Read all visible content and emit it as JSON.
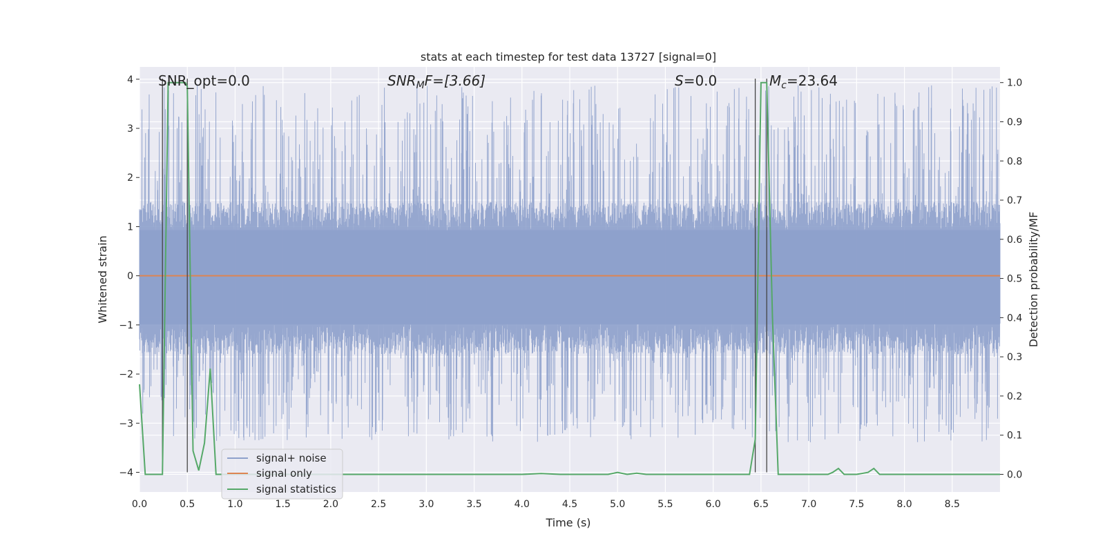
{
  "chart_data": {
    "type": "line",
    "title": "stats at each timestep for test data 13727 [signal=0]",
    "xlabel": "Time (s)",
    "ylabel": "Whitened strain",
    "y2label": "Detection probability/MF",
    "xlim": [
      0.0,
      9.0
    ],
    "ylim": [
      -4.4,
      4.25
    ],
    "y2lim": [
      -0.045,
      1.04
    ],
    "xticks": [
      "0.0",
      "0.5",
      "1.0",
      "1.5",
      "2.0",
      "2.5",
      "3.0",
      "3.5",
      "4.0",
      "4.5",
      "5.0",
      "5.5",
      "6.0",
      "6.5",
      "7.0",
      "7.5",
      "8.0",
      "8.5"
    ],
    "yticks": [
      "4",
      "3",
      "2",
      "1",
      "0",
      "−1",
      "−2",
      "−3",
      "−4"
    ],
    "y2ticks": [
      "1.0",
      "0.9",
      "0.8",
      "0.7",
      "0.6",
      "0.5",
      "0.4",
      "0.3",
      "0.2",
      "0.1",
      "0.0"
    ],
    "grid": true,
    "legend_position": "lower-left",
    "annotations": {
      "snr_opt": "SNR_opt=0.0",
      "snr_mf_name": "SNR",
      "snr_mf_sub": "M",
      "snr_mf_rest": "F=[3.66]",
      "s_name": "S",
      "s_rest": "=0.0",
      "mc_name": "M",
      "mc_sub": "c",
      "mc_rest": "=23.64"
    },
    "vlines_x": [
      0.24,
      0.5,
      6.44,
      6.56
    ],
    "series": [
      {
        "name": "signal+ noise",
        "color": "#8da0cb",
        "style": "noise",
        "envelope_upper": 1.5,
        "envelope_lower": -1.6,
        "peak_range": [
          -3.4,
          3.9
        ]
      },
      {
        "name": "signal only",
        "color": "#dd8452",
        "x": [
          0.0,
          9.0
        ],
        "y": [
          0.0,
          0.0
        ]
      },
      {
        "name": "signal statistics",
        "color": "#55a868",
        "axis": "right",
        "x": [
          0.0,
          0.06,
          0.12,
          0.18,
          0.24,
          0.3,
          0.36,
          0.42,
          0.48,
          0.5,
          0.56,
          0.62,
          0.68,
          0.74,
          0.8,
          0.86,
          0.92,
          1.0,
          2.0,
          3.0,
          4.0,
          4.2,
          4.4,
          4.9,
          5.0,
          5.1,
          5.2,
          5.3,
          5.5,
          6.0,
          6.38,
          6.44,
          6.5,
          6.56,
          6.62,
          6.68,
          6.74,
          6.8,
          7.0,
          7.2,
          7.25,
          7.31,
          7.37,
          7.5,
          7.62,
          7.68,
          7.74,
          8.0,
          9.0
        ],
        "y": [
          0.23,
          0.0,
          0.0,
          0.0,
          0.0,
          1.0,
          1.0,
          1.0,
          1.0,
          0.99,
          0.06,
          0.01,
          0.08,
          0.27,
          0.0,
          0.0,
          0.0,
          0.0,
          0.0,
          0.0,
          0.0,
          0.002,
          0.0,
          0.0,
          0.005,
          0.0,
          0.003,
          0.0,
          0.0,
          0.0,
          0.0,
          0.09,
          1.0,
          1.0,
          0.4,
          0.0,
          0.0,
          0.0,
          0.0,
          0.0,
          0.005,
          0.015,
          0.0,
          0.0,
          0.005,
          0.015,
          0.0,
          0.0,
          0.0
        ]
      }
    ]
  }
}
